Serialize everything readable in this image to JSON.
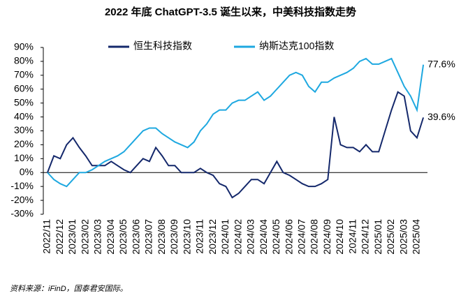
{
  "chart_data": {
    "type": "line",
    "title": "2022 年底 ChatGPT-3.5 诞生以来，中美科技指数走势",
    "source": "资料来源：iFinD，国泰君安国际。",
    "legend": "top",
    "categories": [
      "2022/11",
      null,
      "2022/12",
      null,
      "2023/01",
      null,
      "2023/02",
      null,
      "2023/03",
      null,
      "2023/04",
      null,
      "2023/05",
      null,
      "2023/06",
      null,
      "2023/07",
      null,
      "2023/08",
      null,
      "2023/09",
      null,
      "2023/10",
      null,
      "2023/11",
      null,
      "2023/12",
      null,
      "2024/01",
      null,
      "2024/02",
      null,
      "2024/03",
      null,
      "2024/04",
      null,
      "2024/05",
      null,
      "2024/06",
      null,
      "2024/07",
      null,
      "2024/08",
      null,
      "2024/09",
      null,
      "2024/10",
      null,
      "2024/11",
      null,
      "2024/12",
      null,
      "2025/01",
      null,
      "2025/02",
      null,
      "2025/03",
      null,
      "2025/04",
      null
    ],
    "series": [
      {
        "name": "恒生科技指数",
        "color": "#14286b",
        "values": [
          0,
          12,
          10,
          20,
          25,
          18,
          12,
          5,
          5,
          5,
          8,
          5,
          2,
          0,
          5,
          10,
          8,
          18,
          12,
          5,
          5,
          0,
          0,
          0,
          3,
          0,
          -2,
          -8,
          -10,
          -18,
          -15,
          -10,
          -5,
          -5,
          -8,
          0,
          8,
          0,
          -2,
          -5,
          -8,
          -10,
          -10,
          -8,
          -5,
          40,
          20,
          18,
          18,
          15,
          20,
          15,
          15,
          30,
          45,
          58,
          55,
          30,
          25,
          39.6
        ],
        "value_labels": [
          null,
          null,
          null,
          null,
          null,
          null,
          null,
          null,
          null,
          null,
          null,
          null,
          null,
          null,
          null,
          null,
          null,
          null,
          null,
          null,
          null,
          null,
          null,
          null,
          null,
          null,
          null,
          null,
          null,
          null,
          null,
          null,
          null,
          null,
          null,
          null,
          null,
          null,
          null,
          null,
          null,
          null,
          null,
          null,
          null,
          null,
          null,
          null,
          null,
          null,
          null,
          null,
          null,
          null,
          null,
          null,
          null,
          null,
          null,
          "39.6%"
        ]
      },
      {
        "name": "纳斯达克100指数",
        "color": "#1ea8e0",
        "values": [
          0,
          -5,
          -8,
          -10,
          -5,
          0,
          0,
          2,
          5,
          8,
          10,
          12,
          15,
          20,
          25,
          30,
          32,
          32,
          28,
          25,
          22,
          20,
          18,
          22,
          30,
          35,
          42,
          45,
          45,
          50,
          52,
          52,
          55,
          58,
          52,
          55,
          60,
          65,
          70,
          72,
          70,
          62,
          58,
          65,
          65,
          68,
          70,
          72,
          75,
          80,
          82,
          78,
          78,
          80,
          82,
          72,
          62,
          55,
          45,
          77.6
        ],
        "value_labels": [
          null,
          null,
          null,
          null,
          null,
          null,
          null,
          null,
          null,
          null,
          null,
          null,
          null,
          null,
          null,
          null,
          null,
          null,
          null,
          null,
          null,
          null,
          null,
          null,
          null,
          null,
          null,
          null,
          null,
          null,
          null,
          null,
          null,
          null,
          null,
          null,
          null,
          null,
          null,
          null,
          null,
          null,
          null,
          null,
          null,
          null,
          null,
          null,
          null,
          null,
          null,
          null,
          null,
          null,
          null,
          null,
          null,
          null,
          null,
          "77.6%"
        ]
      }
    ],
    "ylim": [
      -30,
      90
    ],
    "yticks": [
      {
        "value": -30,
        "label": "-30%"
      },
      {
        "value": -20,
        "label": "-20%"
      },
      {
        "value": -10,
        "label": "-10%"
      },
      {
        "value": 0,
        "label": "0%"
      },
      {
        "value": 10,
        "label": "10%"
      },
      {
        "value": 20,
        "label": "20%"
      },
      {
        "value": 30,
        "label": "30%"
      },
      {
        "value": 40,
        "label": "40%"
      },
      {
        "value": 50,
        "label": "50%"
      },
      {
        "value": 60,
        "label": "60%"
      },
      {
        "value": 70,
        "label": "70%"
      },
      {
        "value": 80,
        "label": "80%"
      },
      {
        "value": 90,
        "label": "90%"
      }
    ]
  }
}
